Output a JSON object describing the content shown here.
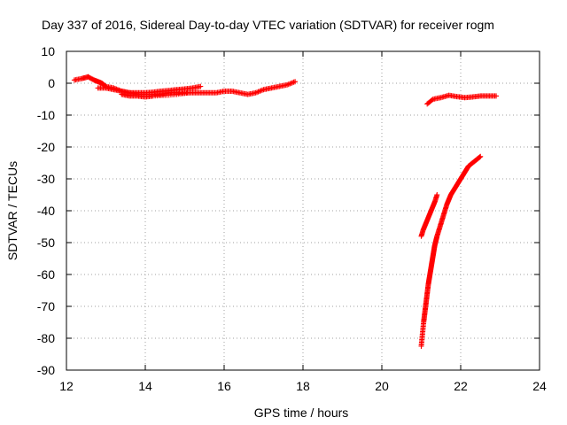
{
  "chart_data": {
    "type": "scatter",
    "title": "Day 337 of 2016, Sidereal Day-to-day VTEC variation (SDTVAR) for receiver rogm",
    "xlabel": "GPS time / hours",
    "ylabel": "SDTVAR / TECUs",
    "xlim": [
      12,
      24
    ],
    "ylim": [
      -90,
      10
    ],
    "xticks": [
      "12",
      "14",
      "16",
      "18",
      "20",
      "22",
      "24"
    ],
    "yticks": [
      "10",
      "0",
      "-10",
      "-20",
      "-30",
      "-40",
      "-50",
      "-60",
      "-70",
      "-80",
      "-90"
    ],
    "grid": true,
    "marker": "plus",
    "color": "#ff0000",
    "series": [
      {
        "x": [
          12.2,
          12.4,
          12.55,
          12.7,
          12.8,
          12.9,
          13.0,
          13.2,
          13.4,
          13.6,
          13.8,
          14.0,
          14.2,
          14.4,
          14.6,
          14.8,
          15.0,
          15.2,
          15.4,
          15.6,
          15.8,
          16.0,
          16.2,
          16.4,
          16.6,
          16.8,
          17.0,
          17.2,
          17.4,
          17.6,
          17.8
        ],
        "y": [
          1,
          1.5,
          2,
          1,
          0.5,
          0,
          -1,
          -1.5,
          -2.5,
          -3,
          -3.5,
          -3.5,
          -3.5,
          -3.5,
          -3,
          -3,
          -3,
          -3,
          -3,
          -3,
          -3,
          -2.5,
          -2.5,
          -3,
          -3.5,
          -3,
          -2,
          -1.5,
          -1,
          -0.5,
          0.5
        ]
      },
      {
        "x": [
          12.8,
          13.0,
          13.2,
          13.4,
          13.6,
          13.8,
          14.0,
          14.2,
          14.4,
          14.6,
          14.8,
          15.0,
          15.2,
          15.4
        ],
        "y": [
          -1.5,
          -1.5,
          -2,
          -2.5,
          -3,
          -3,
          -3,
          -2.8,
          -2.5,
          -2.3,
          -2,
          -1.8,
          -1.5,
          -1
        ]
      },
      {
        "x": [
          13.4,
          13.6,
          13.8,
          14.0,
          14.2,
          14.5,
          14.8,
          15.1
        ],
        "y": [
          -3.5,
          -4,
          -4,
          -4.3,
          -4,
          -3.8,
          -3.5,
          -3
        ]
      },
      {
        "x": [
          21.15,
          21.3,
          21.5,
          21.7,
          21.9,
          22.1,
          22.3,
          22.5,
          22.7,
          22.9
        ],
        "y": [
          -6.5,
          -5,
          -4.5,
          -3.8,
          -4.2,
          -4.5,
          -4.3,
          -4,
          -4,
          -4
        ]
      },
      {
        "x": [
          21.0,
          21.05,
          21.1,
          21.15,
          21.2,
          21.25,
          21.3,
          21.35,
          21.4
        ],
        "y": [
          -48,
          -46,
          -44.5,
          -43,
          -41.5,
          -40,
          -38.5,
          -37,
          -35
        ]
      },
      {
        "x": [
          21.0,
          21.02,
          21.04,
          21.06,
          21.08,
          21.1,
          21.12,
          21.14,
          21.16,
          21.18,
          21.2,
          21.22,
          21.24,
          21.26,
          21.28,
          21.3,
          21.32,
          21.34,
          21.37,
          21.4,
          21.45,
          21.5,
          21.55,
          21.6,
          21.65,
          21.7,
          21.75,
          21.8,
          21.85,
          21.9,
          21.95,
          22.0,
          22.05,
          22.1,
          22.15,
          22.2,
          22.3,
          22.4,
          22.5
        ],
        "y": [
          -82.5,
          -80,
          -77.5,
          -75,
          -73,
          -71,
          -69,
          -67,
          -65,
          -63,
          -61.5,
          -60,
          -58.5,
          -57,
          -55.5,
          -54,
          -52.5,
          -51,
          -49.5,
          -48,
          -46,
          -44,
          -42,
          -40,
          -38,
          -36.5,
          -35,
          -34,
          -33,
          -32,
          -31,
          -30,
          -29,
          -28,
          -27,
          -26,
          -25,
          -24,
          -23
        ]
      }
    ]
  }
}
